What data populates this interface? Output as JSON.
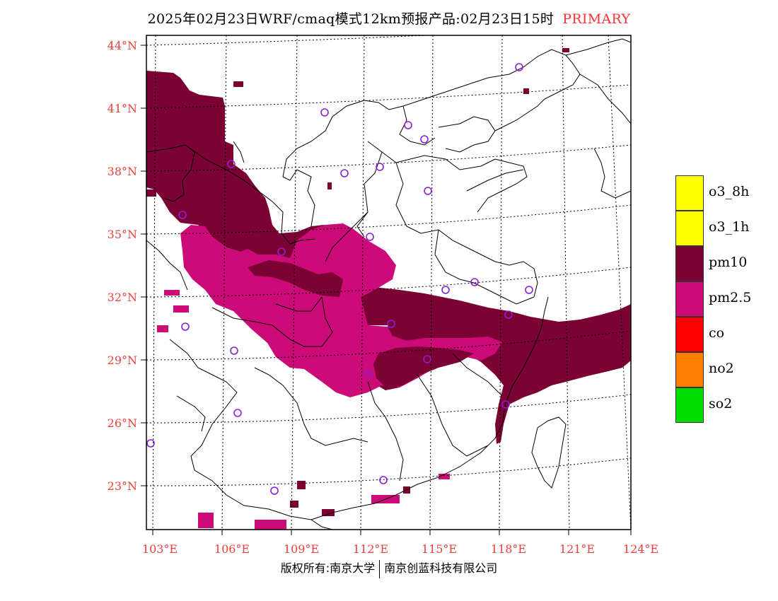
{
  "header": {
    "title": "2025年02月23日WRF/cmaq模式12km预报产品:02月23日15时",
    "tag": "PRIMARY"
  },
  "map": {
    "lat_labels": [
      "44°N",
      "41°N",
      "38°N",
      "35°N",
      "32°N",
      "29°N",
      "26°N",
      "23°N"
    ],
    "lon_labels": [
      "103°E",
      "106°E",
      "109°E",
      "112°E",
      "115°E",
      "118°E",
      "121°E",
      "124°E"
    ],
    "axis_label_color": "#e8413c",
    "colors": {
      "pm10": "#7b0233",
      "pm25": "#cc0a78",
      "marker": "#8a1fd6",
      "border": "#000000"
    }
  },
  "legend": {
    "items": [
      {
        "label": "o3_8h",
        "color": "#ffff00"
      },
      {
        "label": "o3_1h",
        "color": "#ffff00"
      },
      {
        "label": "pm10",
        "color": "#7b0233"
      },
      {
        "label": "pm2.5",
        "color": "#cc0a78"
      },
      {
        "label": "co",
        "color": "#ff0000"
      },
      {
        "label": "no2",
        "color": "#ff7f00"
      },
      {
        "label": "so2",
        "color": "#00dd00"
      }
    ]
  },
  "footer": {
    "left": "版权所有:南京大学",
    "right": "南京创蓝科技有限公司"
  }
}
